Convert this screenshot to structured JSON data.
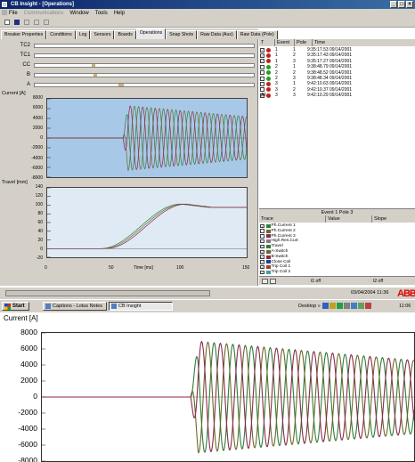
{
  "window": {
    "title": "CB Insight - [Operations]",
    "controls": [
      "_",
      "□",
      "×"
    ]
  },
  "menu": {
    "items": [
      {
        "label": "File",
        "disabled": false
      },
      {
        "label": "Communications",
        "disabled": true
      },
      {
        "label": "Window",
        "disabled": false
      },
      {
        "label": "Tools",
        "disabled": false
      },
      {
        "label": "Help",
        "disabled": false
      }
    ]
  },
  "toolbar": {
    "icons": [
      "new-file-icon",
      "save-icon",
      "copy-icon",
      "paste-icon",
      "print-icon"
    ]
  },
  "tabs": [
    {
      "label": "Breaker Properties",
      "active": false
    },
    {
      "label": "Conditions",
      "active": false
    },
    {
      "label": "Log",
      "active": false
    },
    {
      "label": "Sensors",
      "active": false
    },
    {
      "label": "Boards",
      "active": false
    },
    {
      "label": "Operations",
      "active": true
    },
    {
      "label": "Snap Shots",
      "active": false
    },
    {
      "label": "Raw Data (Aux)",
      "active": false
    },
    {
      "label": "Raw Data (Pole)",
      "active": false
    }
  ],
  "signals": [
    "TC2",
    "TC1",
    "CC",
    "B",
    "A"
  ],
  "current_chart": {
    "ylabel": "Current [A]",
    "yticks": [
      "8000",
      "6000",
      "4000",
      "2000",
      "0",
      "-2000",
      "-4000",
      "-6000",
      "-8000"
    ],
    "colors": {
      "phase1": "#2e7d3a",
      "phase2": "#6a6a2a",
      "phase3": "#8a2a4a"
    }
  },
  "travel_chart": {
    "ylabel": "Travel [mm]",
    "yticks": [
      "140",
      "120",
      "100",
      "80",
      "60",
      "40",
      "20",
      "0",
      "-20"
    ],
    "xticks": [
      "0",
      "50",
      "100",
      "150"
    ],
    "xlabel": "Time [ms]"
  },
  "events": {
    "headers": [
      "T",
      "Event",
      "Pole",
      "Time"
    ],
    "rows": [
      {
        "event": "1",
        "pole": "1",
        "time": "9:35:17.53 09/14/2001",
        "checked": true,
        "color": "#c02020"
      },
      {
        "event": "1",
        "pole": "2",
        "time": "9:35:17.43 09/14/2001",
        "checked": true,
        "color": "#c02020"
      },
      {
        "event": "1",
        "pole": "3",
        "time": "9:35:17.27 09/14/2001",
        "checked": true,
        "color": "#c02020"
      },
      {
        "event": "2",
        "pole": "1",
        "time": "9:38:48.79 09/14/2001",
        "checked": false,
        "color": "#20a020"
      },
      {
        "event": "2",
        "pole": "2",
        "time": "9:38:48.52 09/14/2001",
        "checked": false,
        "color": "#20a020"
      },
      {
        "event": "2",
        "pole": "3",
        "time": "9:38:48.34 09/14/2001",
        "checked": false,
        "color": "#20a020"
      },
      {
        "event": "3",
        "pole": "1",
        "time": "9:42:10.63 09/14/2001",
        "checked": false,
        "color": "#c02020"
      },
      {
        "event": "3",
        "pole": "2",
        "time": "9:42:10.37 09/14/2001",
        "checked": false,
        "color": "#c02020"
      },
      {
        "event": "3",
        "pole": "3",
        "time": "9:42:10.29 09/14/2001",
        "checked": true,
        "color": "#c02020"
      }
    ],
    "all_label": "All"
  },
  "traces": {
    "title": "Event 1 Pole 3",
    "headers": [
      "Trace",
      "Value",
      "Slope"
    ],
    "rows": [
      {
        "label": "Ph.Current 1",
        "checked": true,
        "color": "#2e7d3a"
      },
      {
        "label": "Ph.Current 2",
        "checked": false,
        "color": "#6a6a2a"
      },
      {
        "label": "Ph.Current 3",
        "checked": false,
        "color": "#8a2a4a"
      },
      {
        "label": "High.Res.Curr.",
        "checked": false,
        "color": "#808080"
      },
      {
        "label": "Travel",
        "checked": true,
        "color": "#2e7d3a"
      },
      {
        "label": "A-Switch",
        "checked": true,
        "color": "#6a6a2a"
      },
      {
        "label": "B-Switch",
        "checked": true,
        "color": "#8a2a4a"
      },
      {
        "label": "Close Coil",
        "checked": true,
        "color": "#2040a0"
      },
      {
        "label": "Trip Coil 1",
        "checked": true,
        "color": "#a04020"
      },
      {
        "label": "Trip Coil 2",
        "checked": true,
        "color": "#40a0a0"
      }
    ],
    "footer": {
      "t1": "t1 off",
      "t2": "t2 off"
    }
  },
  "status": {
    "datetime": "03/04/2004 11:36",
    "logo": "ABB"
  },
  "taskbar": {
    "start": "Start",
    "apps": [
      {
        "label": "Captions - Lotus Notes",
        "active": false
      },
      {
        "label": "CB Insight",
        "active": true
      }
    ],
    "desktop": "Desktop »",
    "clock": "11:06 AM"
  },
  "zoom": {
    "ylabel": "Current [A]",
    "yticks": [
      "8000",
      "6000",
      "4000",
      "2000",
      "0",
      "-2000",
      "-4000",
      "-6000",
      "-8000"
    ]
  }
}
